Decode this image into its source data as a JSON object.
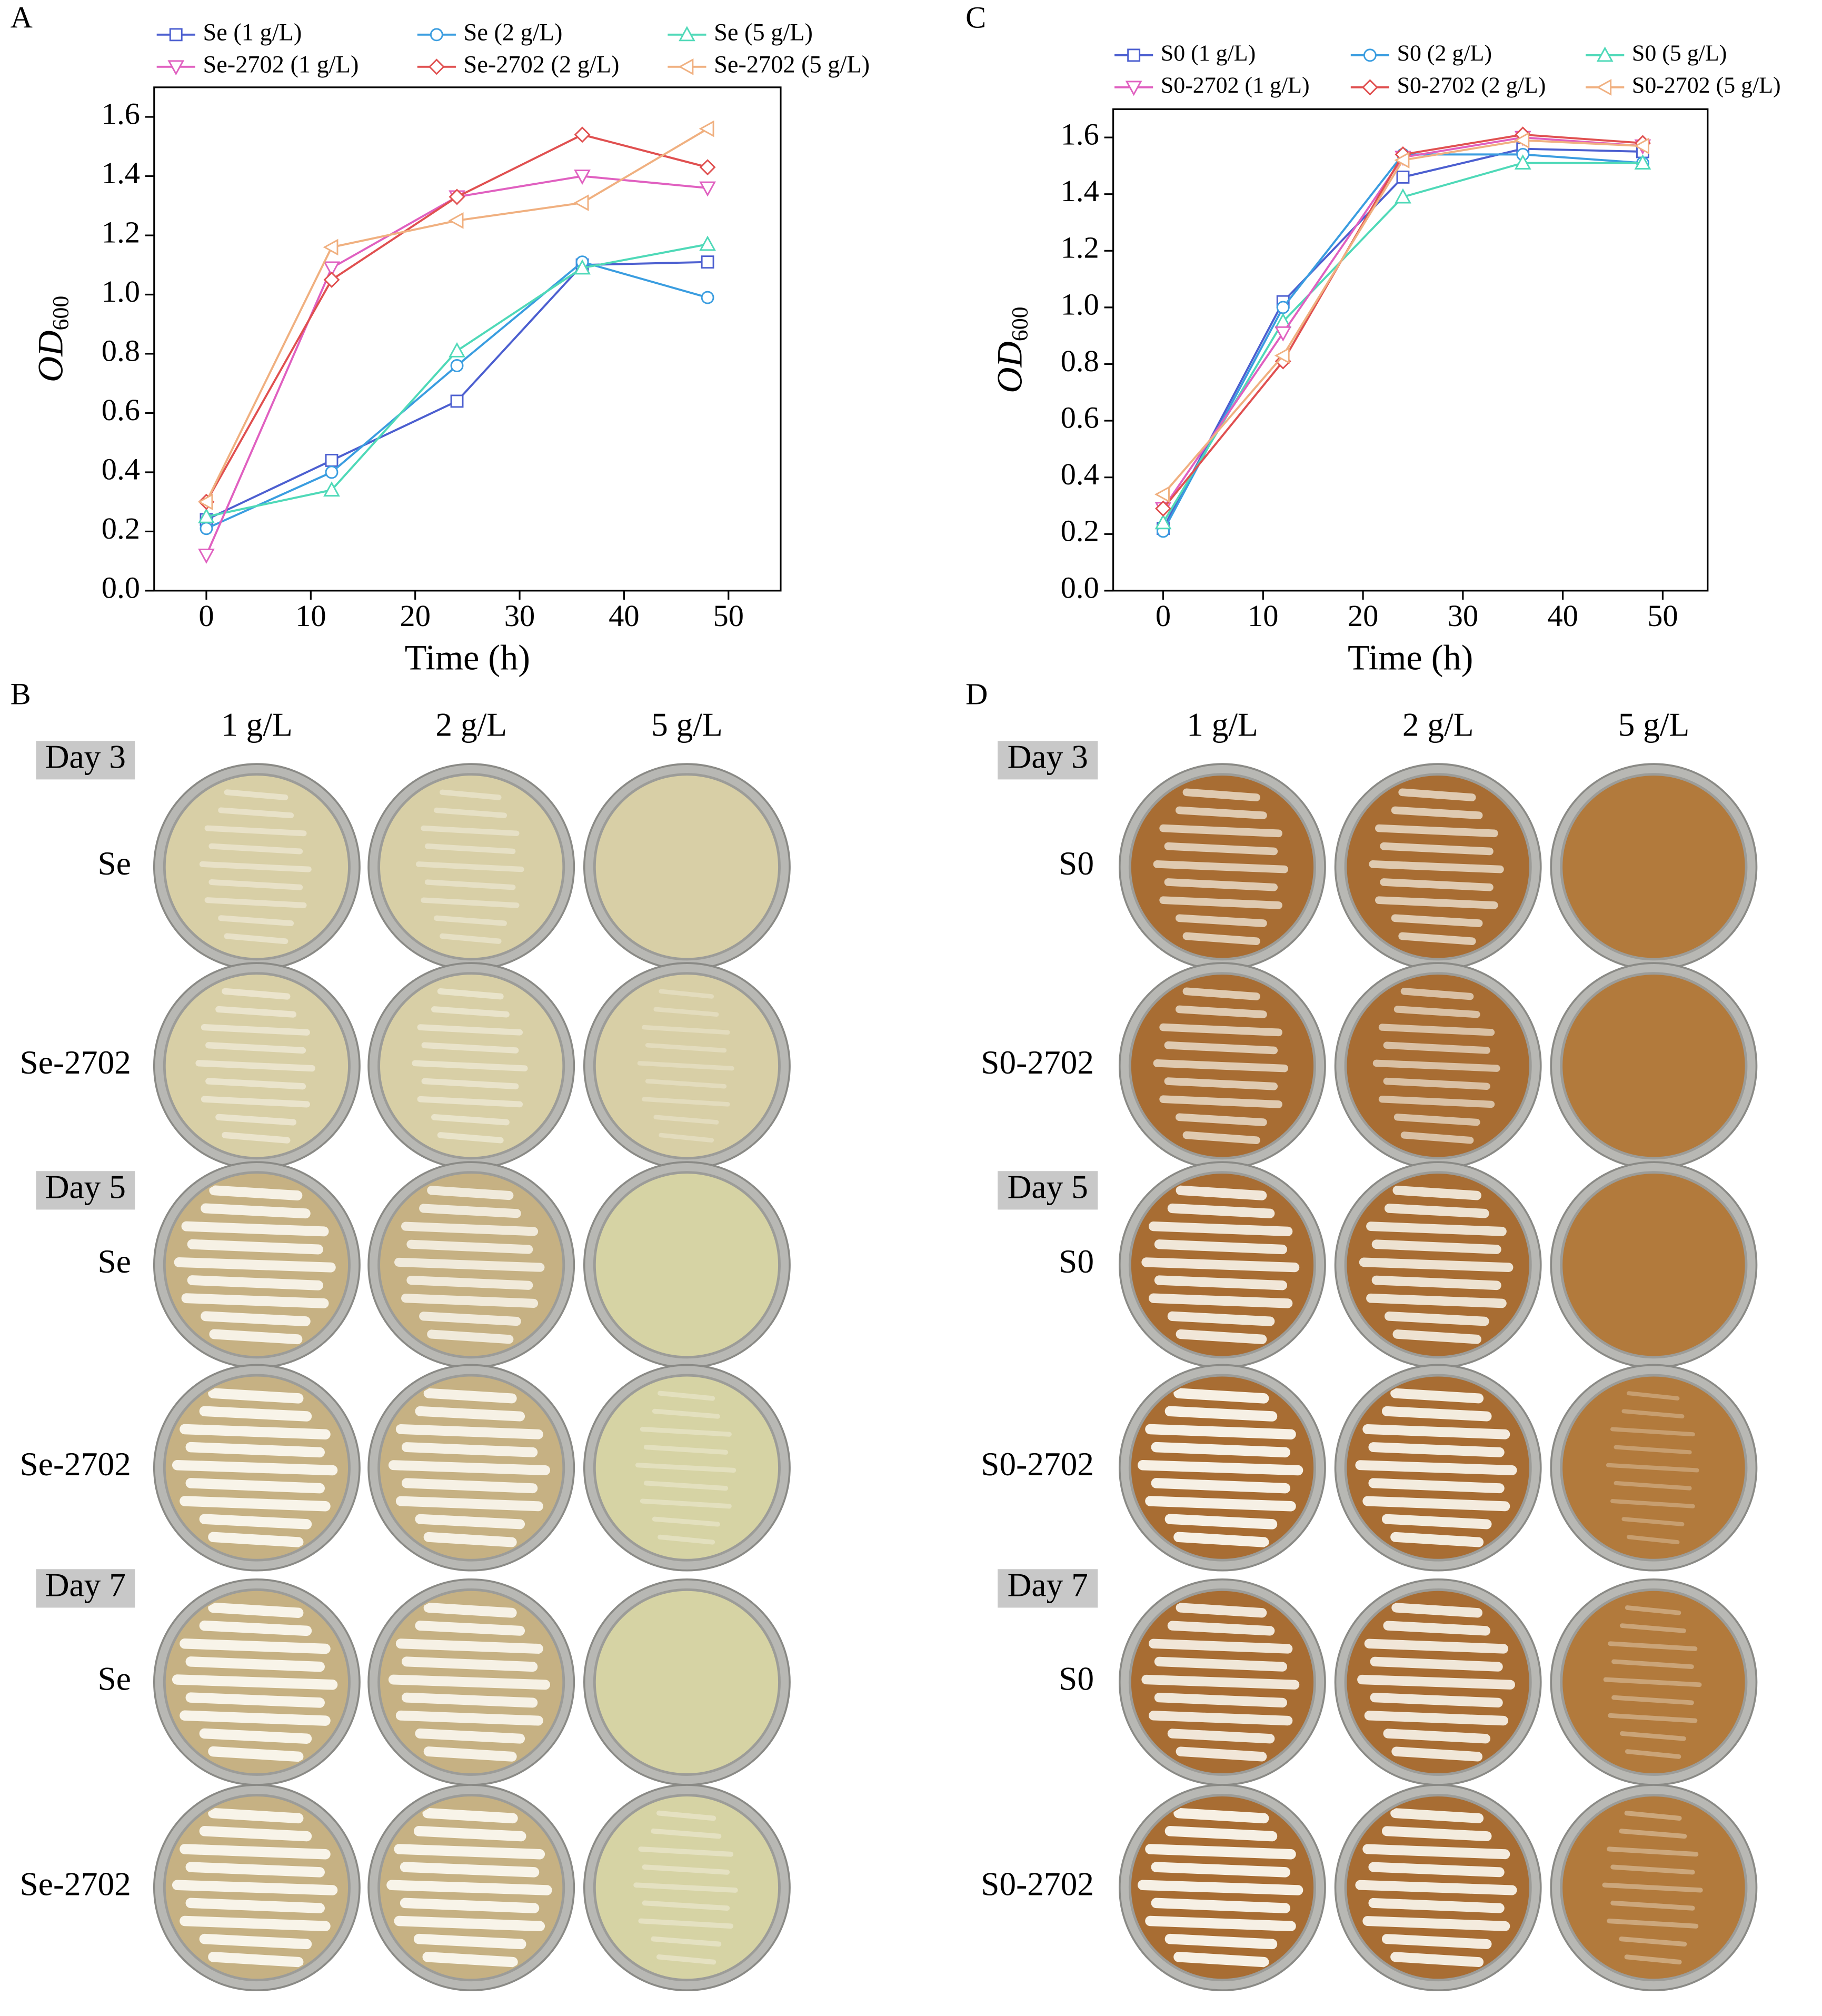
{
  "chart_data": [
    {
      "type": "line",
      "panel": "A",
      "xlabel": "Time (h)",
      "ylabel": "OD",
      "ylabel_sub": "600",
      "x": [
        0,
        12,
        24,
        36,
        48
      ],
      "xlim": [
        -5,
        55
      ],
      "xticks": [
        0,
        10,
        20,
        30,
        40,
        50
      ],
      "ylim": [
        0,
        1.7
      ],
      "yticks": [
        {
          "value": 0,
          "label": "0.0"
        },
        0.2,
        0.4,
        0.6,
        0.8,
        {
          "value": 1,
          "label": "1.0"
        },
        1.2,
        1.4,
        1.6
      ],
      "series": [
        {
          "name": "Se (1 g/L)",
          "color": "#4c5fd0",
          "marker": "square",
          "values": [
            0.24,
            0.44,
            0.64,
            1.1,
            1.11
          ]
        },
        {
          "name": "Se (2 g/L)",
          "color": "#3a9de0",
          "marker": "circle",
          "values": [
            0.21,
            0.4,
            0.76,
            1.11,
            0.99
          ]
        },
        {
          "name": "Se (5 g/L)",
          "color": "#4fd9b8",
          "marker": "triangle-up",
          "values": [
            0.25,
            0.34,
            0.81,
            1.09,
            1.17
          ]
        },
        {
          "name": "Se-2702 (1 g/L)",
          "color": "#e060c0",
          "marker": "triangle-down",
          "values": [
            0.12,
            1.09,
            1.33,
            1.4,
            1.36
          ]
        },
        {
          "name": "Se-2702 (2 g/L)",
          "color": "#e05050",
          "marker": "diamond",
          "values": [
            0.3,
            1.05,
            1.33,
            1.54,
            1.43
          ]
        },
        {
          "name": "Se-2702 (5 g/L)",
          "color": "#f0b080",
          "marker": "triangle-left",
          "values": [
            0.3,
            1.16,
            1.25,
            1.31,
            1.56
          ]
        }
      ]
    },
    {
      "type": "line",
      "panel": "C",
      "xlabel": "Time (h)",
      "ylabel": "OD",
      "ylabel_sub": "600",
      "x": [
        0,
        12,
        24,
        36,
        48
      ],
      "xlim": [
        -5,
        54.5
      ],
      "xticks": [
        0,
        10,
        20,
        30,
        40,
        50
      ],
      "ylim": [
        0,
        1.7
      ],
      "yticks": [
        {
          "value": 0,
          "label": "0.0"
        },
        0.2,
        0.4,
        0.6,
        0.8,
        {
          "value": 1,
          "label": "1.0"
        },
        1.2,
        1.4,
        1.6
      ],
      "series": [
        {
          "name": "S0 (1 g/L)",
          "color": "#4c5fd0",
          "marker": "square",
          "values": [
            0.22,
            1.02,
            1.46,
            1.56,
            1.55
          ]
        },
        {
          "name": "S0 (2 g/L)",
          "color": "#3a9de0",
          "marker": "circle",
          "values": [
            0.21,
            1.0,
            1.54,
            1.54,
            1.51
          ]
        },
        {
          "name": "S0 (5 g/L)",
          "color": "#4fd9b8",
          "marker": "triangle-up",
          "values": [
            0.24,
            0.95,
            1.39,
            1.51,
            1.51
          ]
        },
        {
          "name": "S0-2702 (1 g/L)",
          "color": "#e060c0",
          "marker": "triangle-down",
          "values": [
            0.29,
            0.91,
            1.53,
            1.6,
            1.57
          ]
        },
        {
          "name": "S0-2702 (2 g/L)",
          "color": "#e05050",
          "marker": "diamond",
          "values": [
            0.29,
            0.81,
            1.54,
            1.61,
            1.58
          ]
        },
        {
          "name": "S0-2702 (5 g/L)",
          "color": "#f0b080",
          "marker": "triangle-left",
          "values": [
            0.34,
            0.83,
            1.52,
            1.59,
            1.57
          ]
        }
      ]
    }
  ],
  "plates": [
    {
      "panel": "B",
      "columns": [
        "1 g/L",
        "2 g/L",
        "5 g/L"
      ],
      "groups": [
        {
          "day": "Day 3",
          "rows": [
            "Se",
            "Se-2702"
          ]
        },
        {
          "day": "Day 5",
          "rows": [
            "Se",
            "Se-2702"
          ]
        },
        {
          "day": "Day 7",
          "rows": [
            "Se",
            "Se-2702"
          ]
        }
      ]
    },
    {
      "panel": "D",
      "columns": [
        "1 g/L",
        "2 g/L",
        "5 g/L"
      ],
      "groups": [
        {
          "day": "Day 3",
          "rows": [
            "S0",
            "S0-2702"
          ]
        },
        {
          "day": "Day 5",
          "rows": [
            "S0",
            "S0-2702"
          ]
        },
        {
          "day": "Day 7",
          "rows": [
            "S0",
            "S0-2702"
          ]
        }
      ]
    }
  ]
}
